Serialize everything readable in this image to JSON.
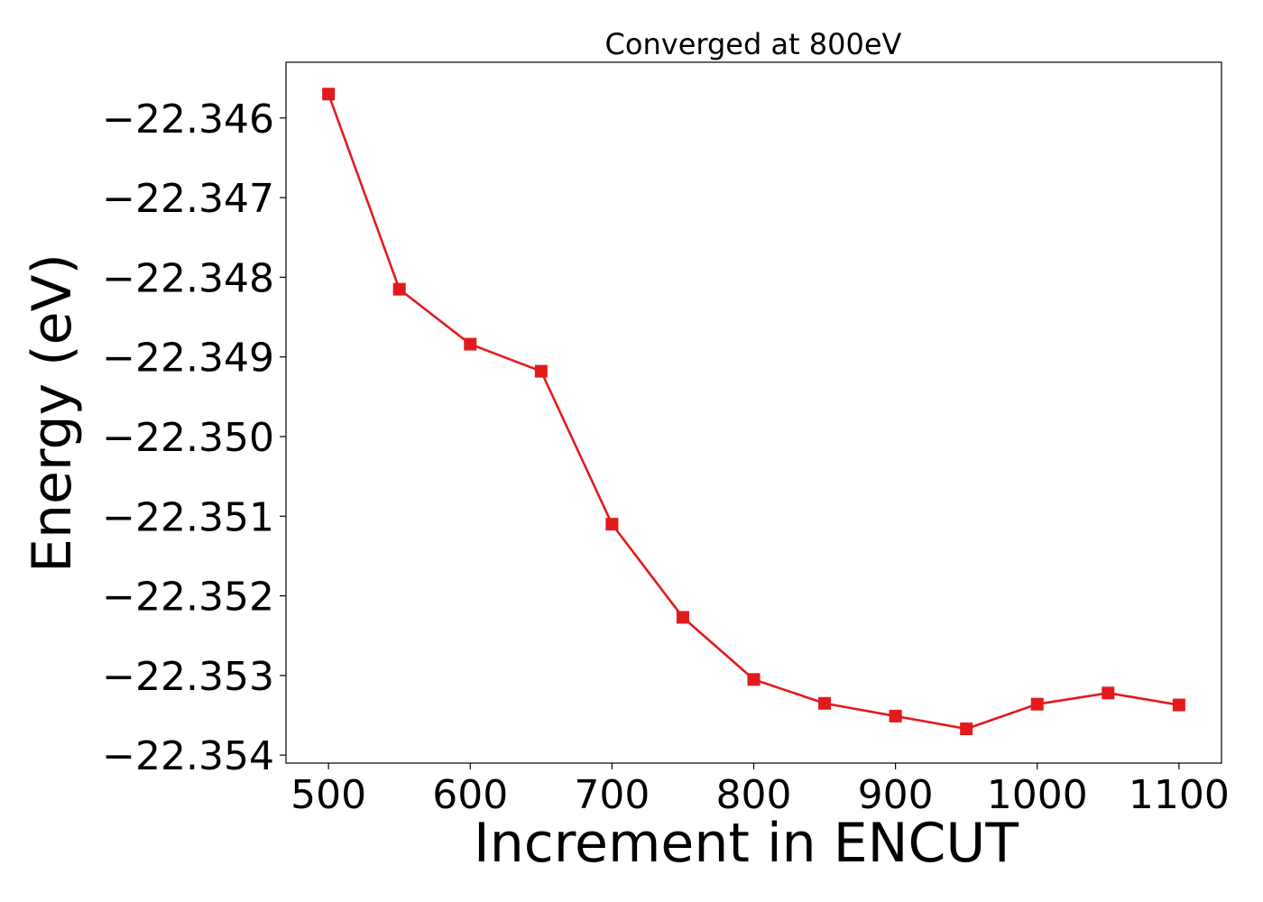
{
  "chart_data": {
    "type": "line",
    "title": "Converged at 800eV",
    "xlabel": "Increment in ENCUT",
    "ylabel": "Energy (eV)",
    "x": [
      500,
      550,
      600,
      650,
      700,
      750,
      800,
      850,
      900,
      950,
      1000,
      1050,
      1100
    ],
    "series": [
      {
        "values": [
          -22.3457,
          -22.34815,
          -22.34884,
          -22.34918,
          -22.3511,
          -22.35227,
          -22.35305,
          -22.35335,
          -22.35351,
          -22.35367,
          -22.35336,
          -22.35322,
          -22.35337
        ],
        "color": "#e31a1c",
        "marker": "square"
      }
    ],
    "xlim": [
      470,
      1130
    ],
    "ylim": [
      -22.3541,
      -22.3453
    ],
    "xticks": [
      500,
      600,
      700,
      800,
      900,
      1000,
      1100
    ],
    "xtick_labels": [
      "500",
      "600",
      "700",
      "800",
      "900",
      "1000",
      "1100"
    ],
    "yticks": [
      -22.346,
      -22.347,
      -22.348,
      -22.349,
      -22.35,
      -22.351,
      -22.352,
      -22.353,
      -22.354
    ],
    "ytick_labels": [
      "−22.346",
      "−22.347",
      "−22.348",
      "−22.349",
      "−22.350",
      "−22.351",
      "−22.352",
      "−22.353",
      "−22.354"
    ],
    "grid": false,
    "legend": false
  }
}
